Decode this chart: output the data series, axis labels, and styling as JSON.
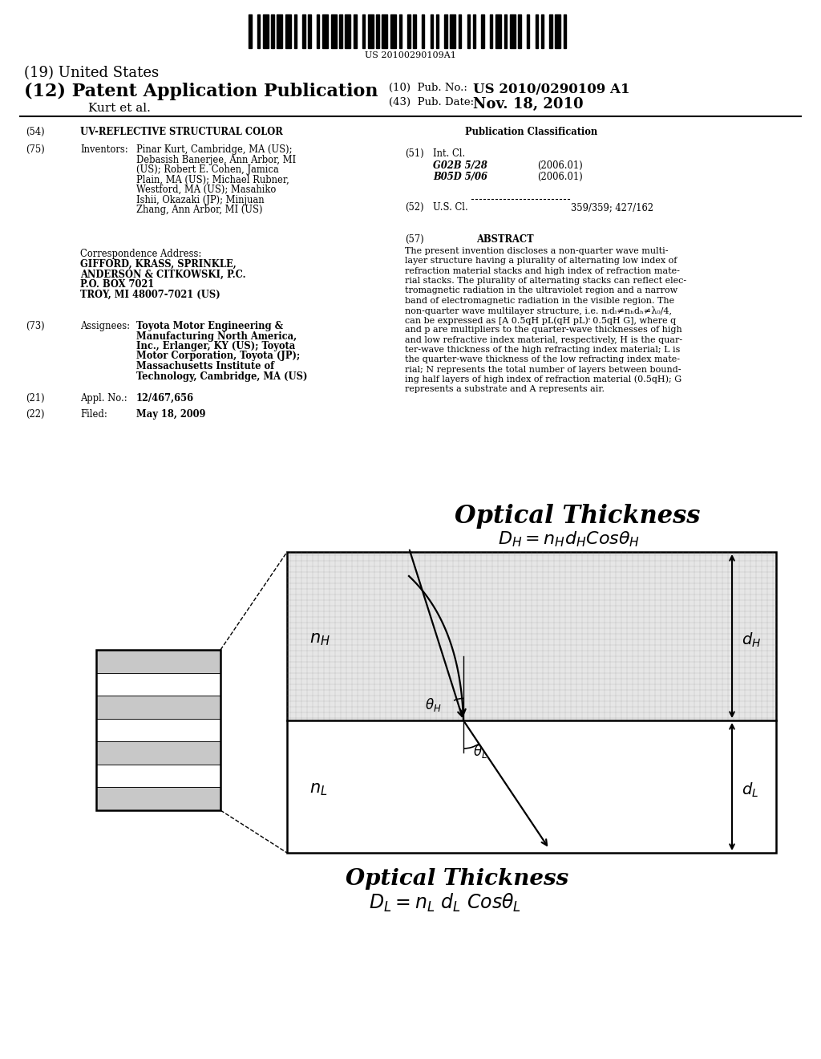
{
  "title_19": "(19) United States",
  "title_12": "(12) Patent Application Publication",
  "title_author": "Kurt et al.",
  "pub_no_label": "(10)  Pub. No.:",
  "pub_no": "US 2010/0290109 A1",
  "pub_date_label": "(43)  Pub. Date:",
  "pub_date": "Nov. 18, 2010",
  "barcode_text": "US 20100290109A1",
  "section_54": "UV-REFLECTIVE STRUCTURAL COLOR",
  "section_75_title": "Inventors:",
  "inv_text_line1": "Pinar Kurt, Cambridge, MA (US);",
  "inv_text_line2": "Debasish Banerjee, Ann Arbor, MI",
  "inv_text_line3": "(US); Robert E. Cohen, Jamica",
  "inv_text_line4": "Plain, MA (US); Michael Rubner,",
  "inv_text_line5": "Westford, MA (US); Masahiko",
  "inv_text_line6": "Ishii, Okazaki (JP); Minjuan",
  "inv_text_line7": "Zhang, Ann Arbor, MI (US)",
  "corr_title": "Correspondence Address:",
  "corr_line1": "GIFFORD, KRASS, SPRINKLE,",
  "corr_line2": "ANDERSON & CITKOWSKI, P.C.",
  "corr_line3": "P.O. BOX 7021",
  "corr_line4": "TROY, MI 48007-7021 (US)",
  "section_73_title": "Assignees:",
  "assign_line1": "Toyota Motor Engineering &",
  "assign_line2": "Manufacturing North America,",
  "assign_line3": "Inc., Erlanger, KY (US); Toyota",
  "assign_line4": "Motor Corporation, Toyota (JP);",
  "assign_line5": "Massachusetts Institute of",
  "assign_line6": "Technology, Cambridge, MA (US)",
  "section_21_title": "Appl. No.:",
  "section_21_text": "12/467,656",
  "section_22_title": "Filed:",
  "section_22_text": "May 18, 2009",
  "pub_class_title": "Publication Classification",
  "section_51_title": "Int. Cl.",
  "section_51_line1_class": "G02B 5/28",
  "section_51_line1_year": "(2006.01)",
  "section_51_line2_class": "B05D 5/06",
  "section_51_line2_year": "(2006.01)",
  "section_52_title": "U.S. Cl.",
  "section_52_text": "359/359; 427/162",
  "section_57_title": "ABSTRACT",
  "abstract_line1": "The present invention discloses a non-quarter wave multi-",
  "abstract_line2": "layer structure having a plurality of alternating low index of",
  "abstract_line3": "refraction material stacks and high index of refraction mate-",
  "abstract_line4": "rial stacks. The plurality of alternating stacks can reflect elec-",
  "abstract_line5": "tromagnetic radiation in the ultraviolet region and a narrow",
  "abstract_line6": "band of electromagnetic radiation in the visible region. The",
  "abstract_line7": "non-quarter wave multilayer structure, i.e. nₗdₗ≠nₕdₕ≠λ₀/4,",
  "abstract_line8": "can be expressed as [A 0.5qH pL(qH pL)ᵎ 0.5qH G], where q",
  "abstract_line9": "and p are multipliers to the quarter-wave thicknesses of high",
  "abstract_line10": "and low refractive index material, respectively, H is the quar-",
  "abstract_line11": "ter-wave thickness of the high refracting index material; L is",
  "abstract_line12": "the quarter-wave thickness of the low refracting index mate-",
  "abstract_line13": "rial; N represents the total number of layers between bound-",
  "abstract_line14": "ing half layers of high index of refraction material (0.5qH); G",
  "abstract_line15": "represents a substrate and A represents air.",
  "diagram_title_top": "Optical Thickness",
  "diagram_eq_top": "$D_H =n_H d_H Cos\\theta_H$",
  "diagram_nH": "$n_H$",
  "diagram_nL": "$n_L$",
  "diagram_dH": "$d_H$",
  "diagram_dL": "$d_L$",
  "diagram_thetaH": "$\\theta_H$",
  "diagram_thetaL": "$\\theta_L$",
  "diagram_title_bot": "Optical Thickness",
  "diagram_eq_bot": "$D_L =n_L\\ d_L\\ Cos\\theta_L$",
  "bg_color": "#ffffff",
  "text_color": "#000000",
  "layer_high_color": "#c8c8c8",
  "layer_low_color": "#ffffff",
  "divider_color": "#000000",
  "barcode_widths": [
    1,
    2,
    1,
    1,
    2,
    1,
    1,
    1,
    2,
    1,
    2,
    1,
    1,
    2,
    1,
    1,
    1,
    2,
    1,
    1,
    2,
    1,
    2,
    1,
    1,
    1,
    2,
    1,
    1,
    2,
    1,
    1,
    2,
    1,
    1,
    1,
    2,
    1,
    2,
    1,
    1,
    2,
    1,
    1,
    1,
    2,
    1,
    2,
    1,
    1,
    1,
    2,
    1,
    1,
    2,
    1,
    1,
    2,
    1,
    1,
    1,
    2,
    1,
    2,
    1,
    1,
    2,
    1,
    1,
    1,
    2,
    1,
    1,
    2,
    1,
    2,
    1,
    1,
    1,
    2,
    1,
    1,
    2,
    1,
    1,
    1
  ]
}
